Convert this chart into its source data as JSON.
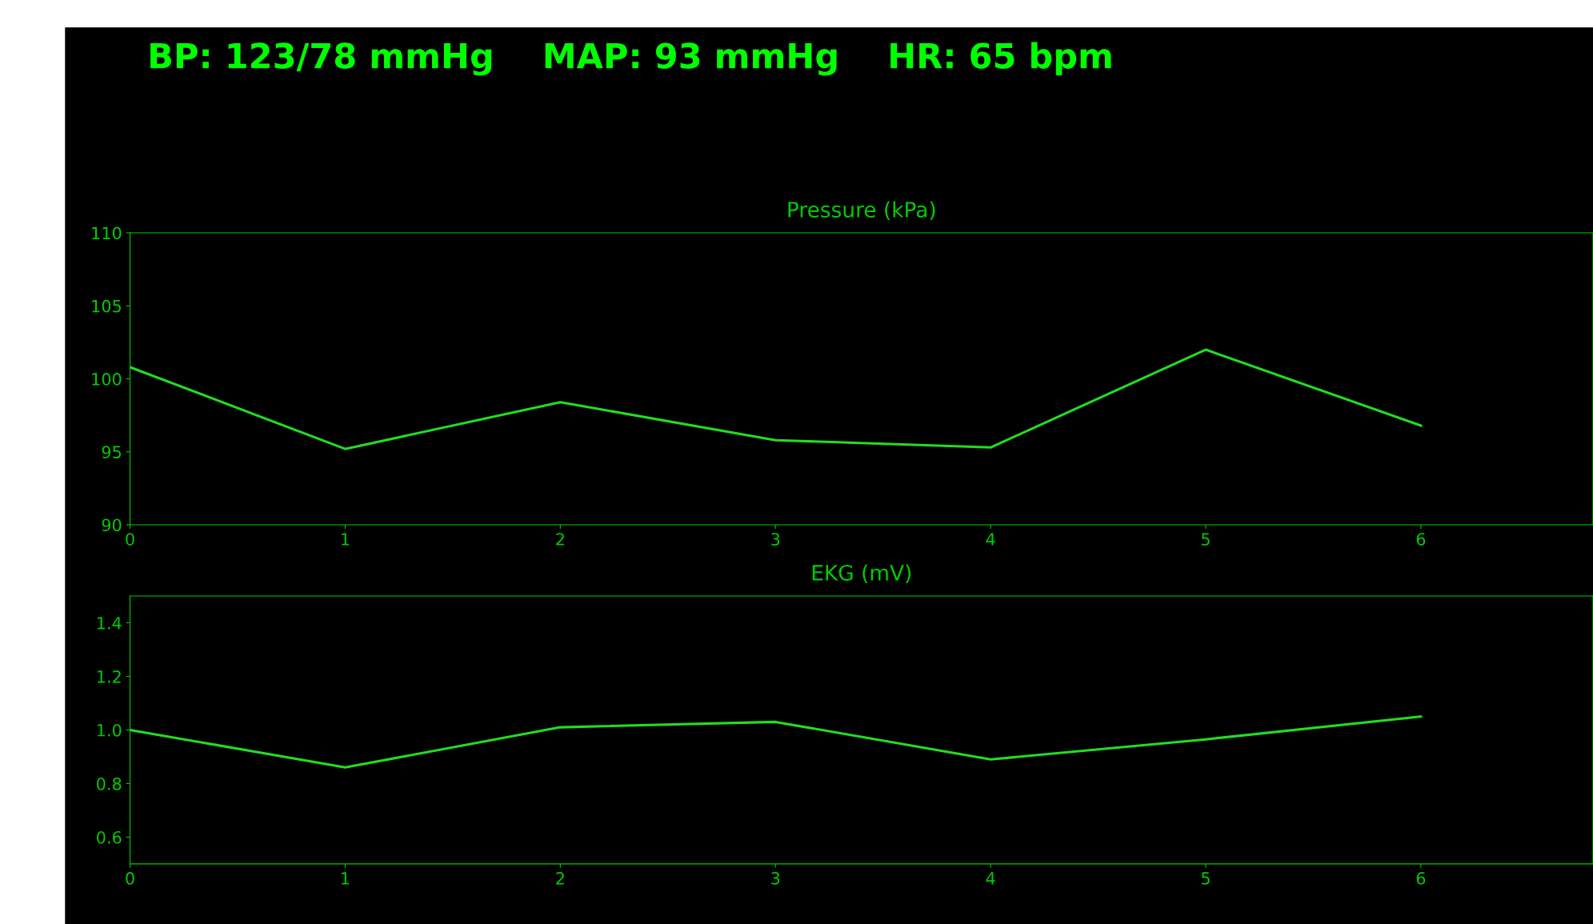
{
  "chart_data": [
    {
      "type": "line",
      "title": "Pressure (kPa)",
      "annotations": [
        "BP: 123/78 mmHg    MAP: 93 mmHg    HR: 65 bpm"
      ],
      "x": [
        0,
        1,
        2,
        3,
        4,
        5,
        6
      ],
      "series": [
        {
          "color": "#22dd22",
          "values": [
            100.8,
            95.2,
            98.4,
            95.8,
            95.3,
            102.0,
            96.8
          ]
        }
      ],
      "xlim": [
        0,
        6.8
      ],
      "xticks": [
        0,
        1,
        2,
        3,
        4,
        5,
        6
      ],
      "ylim": [
        90,
        110
      ],
      "yticks": [
        90,
        95,
        100,
        105,
        110
      ],
      "grid": false,
      "legend": false
    },
    {
      "type": "line",
      "title": "EKG (mV)",
      "x": [
        0,
        1,
        2,
        3,
        4,
        5,
        6
      ],
      "series": [
        {
          "color": "#22dd22",
          "values": [
            1.0,
            0.86,
            1.01,
            1.03,
            0.89,
            0.965,
            1.05
          ]
        }
      ],
      "xlim": [
        0,
        6.8
      ],
      "xticks": [
        0,
        1,
        2,
        3,
        4,
        5,
        6
      ],
      "ylim": [
        0.5,
        1.5
      ],
      "yticks": [
        {
          "value": 0.6,
          "label": "0.6"
        },
        {
          "value": 0.8,
          "label": "0.8"
        },
        {
          "value": 1.0,
          "label": "1.0"
        },
        {
          "value": 1.2,
          "label": "1.2"
        },
        {
          "value": 1.4,
          "label": "1.4"
        }
      ],
      "grid": false,
      "legend": false
    }
  ]
}
